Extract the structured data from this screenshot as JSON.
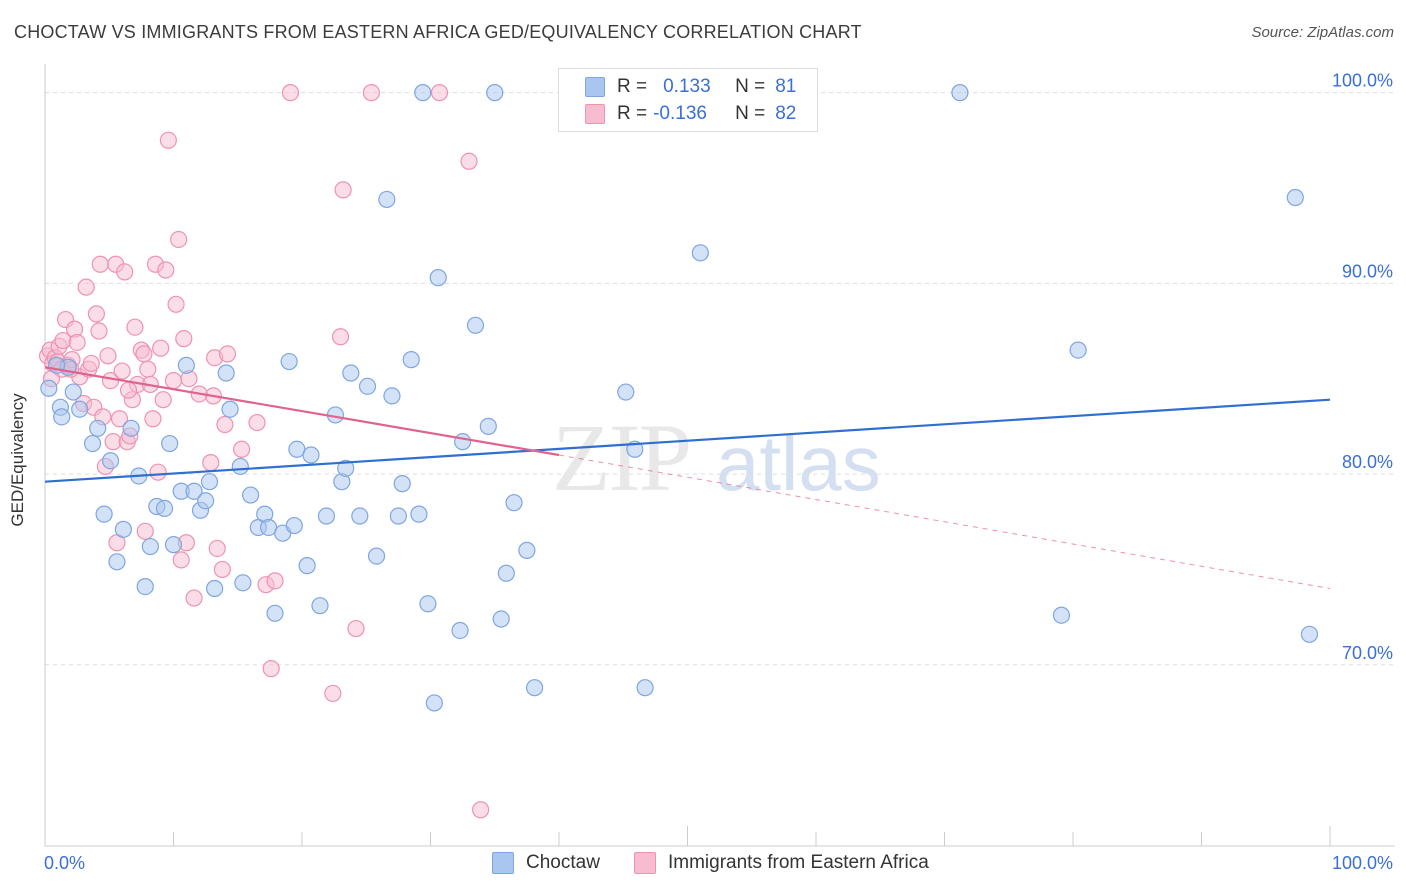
{
  "title": "CHOCTAW VS IMMIGRANTS FROM EASTERN AFRICA GED/EQUIVALENCY CORRELATION CHART",
  "source": "Source: ZipAtlas.com",
  "legend": {
    "rows": [
      {
        "r_label": "R =",
        "r_value": "0.133",
        "n_label": "N =",
        "n_value": "81"
      },
      {
        "r_label": "R =",
        "r_value": "-0.136",
        "n_label": "N =",
        "n_value": "82"
      }
    ]
  },
  "bottom_legend": [
    "Choctaw",
    "Immigrants from Eastern Africa"
  ],
  "colors": {
    "choctaw_fill": "#a9c6f0",
    "choctaw_stroke": "#7ea6e0",
    "choctaw_line": "#2f6fd0",
    "ea_fill": "#f7bcd0",
    "ea_stroke": "#ee93b0",
    "ea_line": "#e0638f",
    "tick_label": "#3a6fd8"
  },
  "chart_data": {
    "type": "scatter",
    "title": "CHOCTAW VS IMMIGRANTS FROM EASTERN AFRICA GED/EQUIVALENCY CORRELATION CHART",
    "ylabel": "GED/Equivalency",
    "xlabel": "",
    "xlim": [
      0,
      100
    ],
    "ylim": [
      60.5,
      101.5
    ],
    "x_tick_labels": [
      "0.0%",
      "100.0%"
    ],
    "y_ticks": [
      70,
      80,
      90,
      100
    ],
    "y_tick_labels": [
      "70.0%",
      "80.0%",
      "90.0%",
      "100.0%"
    ],
    "grid": "horizontal dashed",
    "watermark": "ZIPatlas",
    "series": [
      {
        "name": "Choctaw",
        "R": 0.133,
        "N": 81,
        "trend": {
          "x": [
            0,
            100
          ],
          "y": [
            79.6,
            83.9
          ]
        },
        "points": [
          [
            0.3,
            84.5
          ],
          [
            1.2,
            83.5
          ],
          [
            1.3,
            83.0
          ],
          [
            1.8,
            85.6
          ],
          [
            2.2,
            84.3
          ],
          [
            2.7,
            83.4
          ],
          [
            3.7,
            81.6
          ],
          [
            4.1,
            82.4
          ],
          [
            4.6,
            77.9
          ],
          [
            5.1,
            80.7
          ],
          [
            5.6,
            75.4
          ],
          [
            6.1,
            77.1
          ],
          [
            6.7,
            82.4
          ],
          [
            7.3,
            79.9
          ],
          [
            7.8,
            74.1
          ],
          [
            8.2,
            76.2
          ],
          [
            8.7,
            78.3
          ],
          [
            9.3,
            78.2
          ],
          [
            9.7,
            81.6
          ],
          [
            10.0,
            76.3
          ],
          [
            10.6,
            79.1
          ],
          [
            11.0,
            85.7
          ],
          [
            11.6,
            79.1
          ],
          [
            12.1,
            78.1
          ],
          [
            12.5,
            78.6
          ],
          [
            12.8,
            79.6
          ],
          [
            13.2,
            74.0
          ],
          [
            14.1,
            85.3
          ],
          [
            14.4,
            83.4
          ],
          [
            15.2,
            80.4
          ],
          [
            15.4,
            74.3
          ],
          [
            16.0,
            78.9
          ],
          [
            16.6,
            77.2
          ],
          [
            17.1,
            77.9
          ],
          [
            17.4,
            77.2
          ],
          [
            17.9,
            72.7
          ],
          [
            18.5,
            76.9
          ],
          [
            19.0,
            85.9
          ],
          [
            19.4,
            77.3
          ],
          [
            19.6,
            81.3
          ],
          [
            20.4,
            75.2
          ],
          [
            20.7,
            81.0
          ],
          [
            21.4,
            73.1
          ],
          [
            21.9,
            77.8
          ],
          [
            22.6,
            83.1
          ],
          [
            23.1,
            79.6
          ],
          [
            23.4,
            80.3
          ],
          [
            23.8,
            85.3
          ],
          [
            24.5,
            77.8
          ],
          [
            25.1,
            84.6
          ],
          [
            25.8,
            75.7
          ],
          [
            26.6,
            94.4
          ],
          [
            27.0,
            84.1
          ],
          [
            27.5,
            77.8
          ],
          [
            27.8,
            79.5
          ],
          [
            28.5,
            86.0
          ],
          [
            29.1,
            77.9
          ],
          [
            29.4,
            100.0
          ],
          [
            29.8,
            73.2
          ],
          [
            30.3,
            68.0
          ],
          [
            30.6,
            90.3
          ],
          [
            32.3,
            71.8
          ],
          [
            32.5,
            81.7
          ],
          [
            33.5,
            87.8
          ],
          [
            34.5,
            82.5
          ],
          [
            35.0,
            100.0
          ],
          [
            35.5,
            72.4
          ],
          [
            35.9,
            74.8
          ],
          [
            36.5,
            78.5
          ],
          [
            37.5,
            76.0
          ],
          [
            38.1,
            68.8
          ],
          [
            45.2,
            84.3
          ],
          [
            45.9,
            81.3
          ],
          [
            46.7,
            68.8
          ],
          [
            51.0,
            91.6
          ],
          [
            71.2,
            100.0
          ],
          [
            79.1,
            72.6
          ],
          [
            80.4,
            86.5
          ],
          [
            97.3,
            94.5
          ],
          [
            98.4,
            71.6
          ],
          [
            0.9,
            85.7
          ]
        ]
      },
      {
        "name": "Immigrants from Eastern Africa",
        "R": -0.136,
        "N": 82,
        "trend": {
          "x": [
            0,
            40
          ],
          "y": [
            85.6,
            81.0
          ]
        },
        "trend_extension": {
          "x": [
            40,
            100
          ],
          "y": [
            81.0,
            74.0
          ]
        },
        "points": [
          [
            0.2,
            86.2
          ],
          [
            0.4,
            86.5
          ],
          [
            0.6,
            85.8
          ],
          [
            0.8,
            86.1
          ],
          [
            1.0,
            85.9
          ],
          [
            1.1,
            86.7
          ],
          [
            1.3,
            85.5
          ],
          [
            1.4,
            87.0
          ],
          [
            1.6,
            88.1
          ],
          [
            1.8,
            85.7
          ],
          [
            2.1,
            86.0
          ],
          [
            2.3,
            87.6
          ],
          [
            2.5,
            86.9
          ],
          [
            2.7,
            85.1
          ],
          [
            3.0,
            83.7
          ],
          [
            3.2,
            89.8
          ],
          [
            3.4,
            85.5
          ],
          [
            3.6,
            85.8
          ],
          [
            3.8,
            83.5
          ],
          [
            4.0,
            88.4
          ],
          [
            4.2,
            87.5
          ],
          [
            4.3,
            91.0
          ],
          [
            4.5,
            83.0
          ],
          [
            4.7,
            80.4
          ],
          [
            4.9,
            86.2
          ],
          [
            5.1,
            84.9
          ],
          [
            5.3,
            81.7
          ],
          [
            5.5,
            91.0
          ],
          [
            5.6,
            76.4
          ],
          [
            5.8,
            82.9
          ],
          [
            6.0,
            85.4
          ],
          [
            6.2,
            90.6
          ],
          [
            6.4,
            81.7
          ],
          [
            6.6,
            82.0
          ],
          [
            6.8,
            83.9
          ],
          [
            7.0,
            87.7
          ],
          [
            7.2,
            84.7
          ],
          [
            7.5,
            86.5
          ],
          [
            7.7,
            86.3
          ],
          [
            7.8,
            77.0
          ],
          [
            8.0,
            85.5
          ],
          [
            8.2,
            84.7
          ],
          [
            8.4,
            82.9
          ],
          [
            8.6,
            91.0
          ],
          [
            8.8,
            80.1
          ],
          [
            9.0,
            86.6
          ],
          [
            9.2,
            83.9
          ],
          [
            9.4,
            90.7
          ],
          [
            9.6,
            97.5
          ],
          [
            10.0,
            84.9
          ],
          [
            10.2,
            88.9
          ],
          [
            10.4,
            92.3
          ],
          [
            10.6,
            75.5
          ],
          [
            10.8,
            87.1
          ],
          [
            11.0,
            76.4
          ],
          [
            11.2,
            85.0
          ],
          [
            11.6,
            73.5
          ],
          [
            12.9,
            80.6
          ],
          [
            13.1,
            84.1
          ],
          [
            13.2,
            86.1
          ],
          [
            13.4,
            76.1
          ],
          [
            13.8,
            75.0
          ],
          [
            14.0,
            82.6
          ],
          [
            14.2,
            86.3
          ],
          [
            15.3,
            81.3
          ],
          [
            16.5,
            82.7
          ],
          [
            17.2,
            74.2
          ],
          [
            17.9,
            74.4
          ],
          [
            17.6,
            69.8
          ],
          [
            22.4,
            68.5
          ],
          [
            23.0,
            87.2
          ],
          [
            23.2,
            94.9
          ],
          [
            24.2,
            71.9
          ],
          [
            19.1,
            100.0
          ],
          [
            25.4,
            100.0
          ],
          [
            30.7,
            100.0
          ],
          [
            33.0,
            96.4
          ],
          [
            33.9,
            62.4
          ],
          [
            0.5,
            85.0
          ],
          [
            2.0,
            85.5
          ],
          [
            6.5,
            84.4
          ],
          [
            12.0,
            84.2
          ]
        ]
      }
    ]
  }
}
